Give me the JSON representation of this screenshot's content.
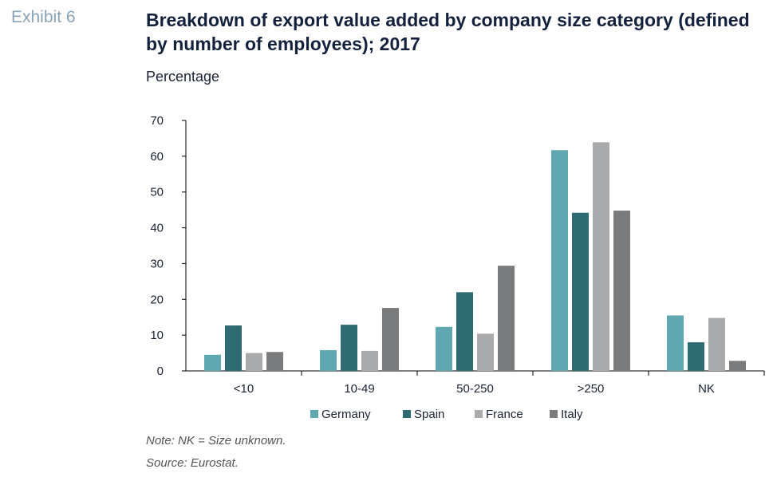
{
  "header": {
    "exhibit": "Exhibit 6",
    "title": "Breakdown of export value added by company size category (defined by number of employees); 2017",
    "subtitle": "Percentage"
  },
  "footer": {
    "note": "Note: NK = Size unknown.",
    "source": "Source: Eurostat."
  },
  "chart_data": {
    "type": "bar",
    "title": "Breakdown of export value added by company size category (defined by number of employees); 2017",
    "ylabel": "Percentage",
    "xlabel": "",
    "categories": [
      "<10",
      "10-49",
      "50-250",
      ">250",
      "NK"
    ],
    "ylim": [
      0,
      70
    ],
    "yticks": [
      0,
      10,
      20,
      30,
      40,
      50,
      60,
      70
    ],
    "grid": false,
    "legend_position": "bottom",
    "series": [
      {
        "name": "Germany",
        "color": "#5fa8b2",
        "values": [
          4.5,
          5.8,
          12.3,
          61.7,
          15.5
        ]
      },
      {
        "name": "Spain",
        "color": "#2e6b72",
        "values": [
          12.7,
          12.9,
          22.0,
          44.2,
          8.0
        ]
      },
      {
        "name": "France",
        "color": "#a8aaac",
        "values": [
          5.0,
          5.6,
          10.4,
          63.9,
          14.8
        ]
      },
      {
        "name": "Italy",
        "color": "#7a7b7d",
        "values": [
          5.3,
          17.6,
          29.4,
          44.8,
          2.8
        ]
      }
    ]
  }
}
